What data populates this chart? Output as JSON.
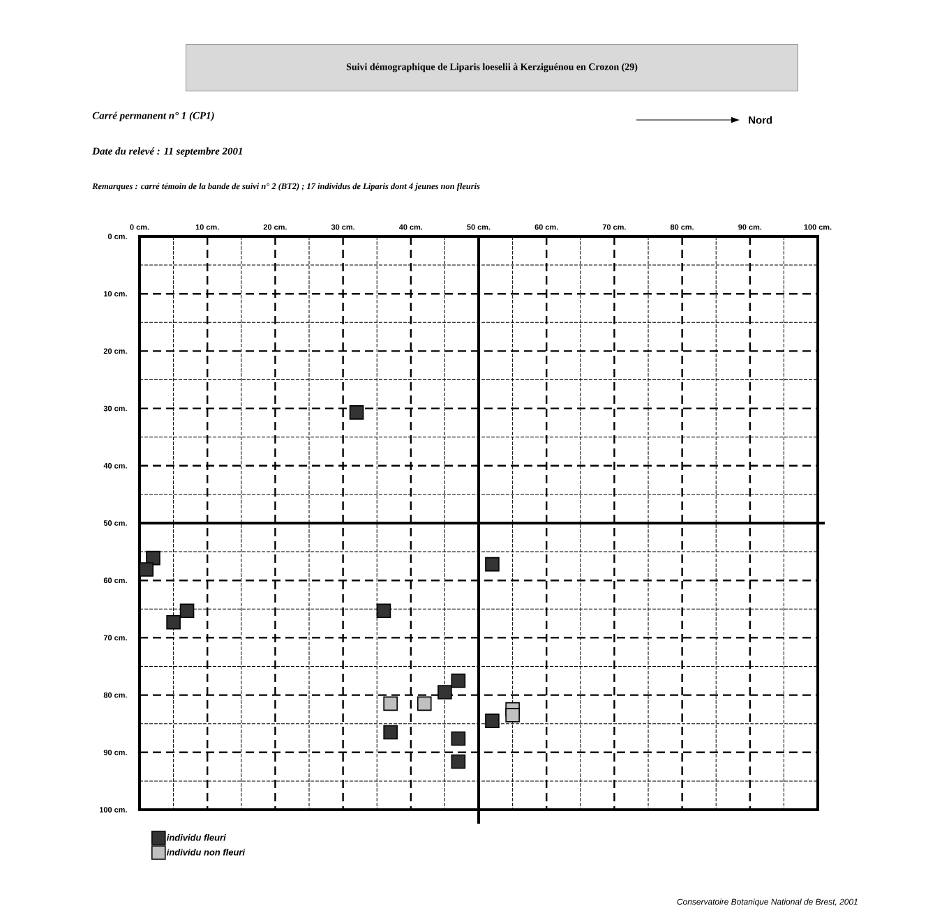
{
  "chart_data": {
    "type": "scatter",
    "title": "Suivi démographique de Liparis loeselii à Kerziguénou en Crozon (29)",
    "annotations": [
      "Carré permanent n° 1  (CP1)",
      "Nord",
      "Date du relevé :   11 septembre 2001",
      "**Remarques :** carré témoin de la bande de suivi n° 2 (BT2) ; 17 individus de Liparis dont 4 jeunes non fleuris",
      "Conservatoire Botanique National de Brest, 2001"
    ],
    "series": [
      {
        "name": "individu fleuri",
        "color": "#333333",
        "x": [
          32,
          2,
          1,
          7,
          5,
          36,
          52,
          47,
          45,
          52,
          37,
          47,
          47
        ],
        "values": [
          30.7,
          56.1,
          58.1,
          65.3,
          67.3,
          65.3,
          57.2,
          77.5,
          79.5,
          84.5,
          86.5,
          87.6,
          91.6
        ]
      },
      {
        "name": "individu non fleuri",
        "color": "#c0c0c0",
        "x": [
          37,
          42,
          55,
          55
        ],
        "values": [
          81.5,
          81.5,
          82.5,
          83.5
        ]
      }
    ],
    "xlim": [
      0,
      100
    ],
    "ylim": [
      100,
      0
    ],
    "xticks": [
      {
        "value": 0,
        "label": "0 cm."
      },
      {
        "value": 10,
        "label": "10 cm."
      },
      {
        "value": 20,
        "label": "20 cm."
      },
      {
        "value": 30,
        "label": "30 cm."
      },
      {
        "value": 40,
        "label": "40 cm."
      },
      {
        "value": 50,
        "label": "50 cm."
      },
      {
        "value": 60,
        "label": "60 cm."
      },
      {
        "value": 70,
        "label": "70 cm."
      },
      {
        "value": 80,
        "label": "80 cm."
      },
      {
        "value": 90,
        "label": "90 cm."
      },
      {
        "value": 100,
        "label": "100 cm."
      }
    ],
    "yticks": [
      {
        "value": 0,
        "label": "0 cm."
      },
      {
        "value": 10,
        "label": "10 cm."
      },
      {
        "value": 20,
        "label": "20 cm."
      },
      {
        "value": 30,
        "label": "30 cm."
      },
      {
        "value": 40,
        "label": "40 cm."
      },
      {
        "value": 50,
        "label": "50 cm."
      },
      {
        "value": 60,
        "label": "60 cm."
      },
      {
        "value": 70,
        "label": "70 cm."
      },
      {
        "value": 80,
        "label": "80 cm."
      },
      {
        "value": 90,
        "label": "90 cm."
      },
      {
        "value": 100,
        "label": "100 cm."
      }
    ],
    "grid": true,
    "legend": "bottom left",
    "marker": "square"
  }
}
